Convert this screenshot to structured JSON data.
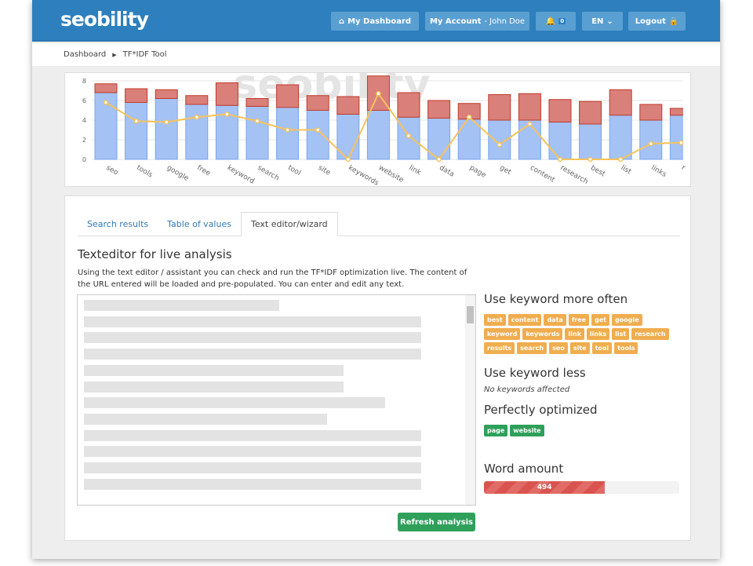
{
  "header": {
    "logo": "seobility",
    "dashboard": "My Dashboard",
    "account": "My Account",
    "account_user": " - John Doe",
    "notifications": "0",
    "language": "EN",
    "logout": "Logout"
  },
  "breadcrumb": {
    "home": "Dashboard",
    "current": "TF*IDF Tool"
  },
  "chart_data": {
    "type": "bar",
    "stacked": true,
    "watermark": "seobility",
    "yticks": [
      "0",
      "2",
      "4",
      "6",
      "8"
    ],
    "ylim": [
      0,
      8
    ],
    "categories": [
      "seo",
      "tools",
      "google",
      "free",
      "keyword",
      "search",
      "tool",
      "site",
      "keywords",
      "website",
      "link",
      "data",
      "page",
      "get",
      "content",
      "research",
      "best",
      "list",
      "links",
      "r"
    ],
    "series": [
      {
        "name": "blue",
        "color": "#a4c2f4",
        "values": [
          6.8,
          5.8,
          6.2,
          5.6,
          5.5,
          5.4,
          5.3,
          5.0,
          4.6,
          5.0,
          4.3,
          4.2,
          4.1,
          4.0,
          4.0,
          3.8,
          3.6,
          4.5,
          4.0,
          4.5
        ]
      },
      {
        "name": "red",
        "color": "#d9807a",
        "values": [
          0.9,
          1.4,
          0.9,
          0.9,
          2.3,
          0.8,
          2.3,
          1.5,
          1.8,
          3.5,
          2.5,
          1.8,
          1.6,
          2.6,
          2.7,
          2.3,
          2.3,
          2.6,
          1.6,
          0.7
        ]
      },
      {
        "name": "line",
        "type": "line",
        "color": "#f6c25a",
        "values": [
          5.8,
          3.9,
          3.8,
          4.3,
          4.6,
          3.9,
          3.0,
          3.0,
          0,
          6.7,
          2.4,
          0,
          4.3,
          1.5,
          3.6,
          0,
          0,
          0,
          1.6,
          1.7
        ]
      }
    ]
  },
  "tabs": [
    "Search results",
    "Table of values",
    "Text editor/wizard"
  ],
  "editor": {
    "title": "Texteditor for live analysis",
    "description": "Using the text editor / assistant you can check and run the TF*IDF optimization live. The content of the URL entered will be loaded and pre-populated. You can enter and edit any text.",
    "refresh": "Refresh analysis"
  },
  "results": {
    "more_title": "Use keyword more often",
    "more": [
      "best",
      "content",
      "data",
      "free",
      "get",
      "google",
      "keyword",
      "keywords",
      "link",
      "links",
      "list",
      "research",
      "results",
      "search",
      "seo",
      "site",
      "tool",
      "tools"
    ],
    "less_title": "Use keyword less",
    "less_none": "No keywords affected",
    "perfect_title": "Perfectly optimized",
    "perfect": [
      "page",
      "website"
    ],
    "word_title": "Word amount",
    "word_count": "494",
    "word_progress": 0.62
  }
}
